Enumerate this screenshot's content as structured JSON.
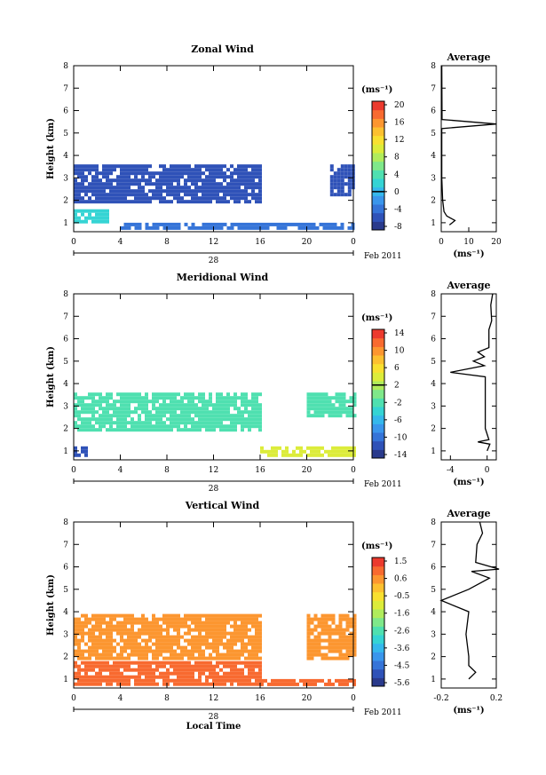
{
  "month_label": "Feb 2011",
  "day_label": "28",
  "xlabel_main": "Local Time",
  "ylabel_main": "Height (km)",
  "unit_label": "(ms⁻¹)",
  "avg_title": "Average",
  "x_ticks": [
    "0",
    "4",
    "8",
    "12",
    "16",
    "20",
    "0"
  ],
  "y_ticks": [
    "1",
    "2",
    "3",
    "4",
    "5",
    "6",
    "7",
    "8"
  ],
  "colors": {
    "scale": [
      "#2a3a8c",
      "#2f52b8",
      "#3574d8",
      "#3a96ec",
      "#35b8ec",
      "#35d4d4",
      "#4fe0b0",
      "#7fe88a",
      "#b0ec5c",
      "#dcec3a",
      "#f8e030",
      "#fcc030",
      "#fc9630",
      "#f86a30",
      "#ec3a2e"
    ]
  },
  "chart_data": [
    {
      "type": "heatmap",
      "title": "Zonal Wind",
      "ylabel": "Height (km)",
      "xlim": [
        0,
        24
      ],
      "ylim": [
        0.6,
        8
      ],
      "colorbar": {
        "labels": [
          "20",
          "16",
          "12",
          "8",
          "4",
          "0",
          "-4",
          "-8"
        ],
        "zero_label": "0"
      },
      "regions": [
        {
          "x": [
            0,
            16
          ],
          "y": [
            2.0,
            3.6
          ],
          "value": -6
        },
        {
          "x": [
            22,
            24
          ],
          "y": [
            2.3,
            3.6
          ],
          "value": -6
        },
        {
          "x": [
            0,
            3
          ],
          "y": [
            1.0,
            1.6
          ],
          "value": 2
        },
        {
          "x": [
            4,
            24
          ],
          "y": [
            0.7,
            1.0
          ],
          "value": -3
        }
      ],
      "average": {
        "xlim": [
          0,
          20
        ],
        "xticks": [
          "0",
          "10",
          "20"
        ],
        "profile": [
          [
            3,
            0.9
          ],
          [
            5,
            1.1
          ],
          [
            2,
            1.3
          ],
          [
            1,
            1.5
          ],
          [
            0.5,
            2
          ],
          [
            0.2,
            3
          ],
          [
            0.2,
            4
          ],
          [
            0.2,
            5
          ],
          [
            0.2,
            5.2
          ],
          [
            20,
            5.4
          ],
          [
            0.3,
            5.6
          ],
          [
            0.2,
            8
          ]
        ]
      }
    },
    {
      "type": "heatmap",
      "title": "Meridional Wind",
      "ylabel": "Height (km)",
      "xlim": [
        0,
        24
      ],
      "ylim": [
        0.6,
        8
      ],
      "colorbar": {
        "labels": [
          "14",
          "10",
          "6",
          "2",
          "-2",
          "-6",
          "-10",
          "-14"
        ],
        "zero_label": "2"
      },
      "regions": [
        {
          "x": [
            0,
            16
          ],
          "y": [
            2.0,
            3.6
          ],
          "value": -1
        },
        {
          "x": [
            20,
            24
          ],
          "y": [
            2.6,
            3.6
          ],
          "value": -1
        },
        {
          "x": [
            0,
            1
          ],
          "y": [
            0.8,
            1.2
          ],
          "value": -12
        },
        {
          "x": [
            16,
            24
          ],
          "y": [
            0.8,
            1.2
          ],
          "value": 4
        }
      ],
      "average": {
        "xlim": [
          -5,
          1
        ],
        "xticks": [
          "-4",
          "0"
        ],
        "profile": [
          [
            0,
            1
          ],
          [
            0.3,
            1.3
          ],
          [
            -1,
            1.4
          ],
          [
            0.2,
            1.5
          ],
          [
            -0.2,
            2
          ],
          [
            -0.2,
            3
          ],
          [
            -0.2,
            4
          ],
          [
            -0.2,
            4.3
          ],
          [
            -4,
            4.5
          ],
          [
            -0.3,
            4.8
          ],
          [
            -1.5,
            5
          ],
          [
            -0.3,
            5.2
          ],
          [
            -1,
            5.4
          ],
          [
            0.2,
            5.6
          ],
          [
            0.2,
            6.4
          ],
          [
            0.5,
            6.8
          ],
          [
            0.4,
            7.5
          ],
          [
            0.6,
            8
          ]
        ]
      }
    },
    {
      "type": "heatmap",
      "title": "Vertical Wind",
      "ylabel": "Height (km)",
      "xlabel": "Local Time",
      "xlim": [
        0,
        24
      ],
      "ylim": [
        0.6,
        8
      ],
      "colorbar": {
        "labels": [
          "1.5",
          "0.6",
          "-0.5",
          "-1.6",
          "-2.6",
          "-3.6",
          "-4.5",
          "-5.6"
        ],
        "zero_label": ""
      },
      "regions": [
        {
          "x": [
            0,
            16
          ],
          "y": [
            2.0,
            3.9
          ],
          "value": 0.2
        },
        {
          "x": [
            20,
            24
          ],
          "y": [
            2.0,
            3.9
          ],
          "value": 0.2
        },
        {
          "x": [
            0,
            16
          ],
          "y": [
            0.7,
            1.8
          ],
          "value": 0.8
        },
        {
          "x": [
            16,
            24
          ],
          "y": [
            0.7,
            1.0
          ],
          "value": 0.8
        }
      ],
      "average": {
        "xlim": [
          -0.2,
          0.2
        ],
        "xticks": [
          "-0.2",
          "0.2"
        ],
        "profile": [
          [
            0,
            1
          ],
          [
            0.05,
            1.3
          ],
          [
            0,
            1.6
          ],
          [
            0,
            2
          ],
          [
            -0.02,
            3
          ],
          [
            0,
            4
          ],
          [
            -0.2,
            4.5
          ],
          [
            0,
            5
          ],
          [
            0.15,
            5.5
          ],
          [
            0.02,
            5.8
          ],
          [
            0.22,
            5.9
          ],
          [
            0.05,
            6.2
          ],
          [
            0.06,
            7
          ],
          [
            0.1,
            7.5
          ],
          [
            0.08,
            8
          ]
        ]
      }
    }
  ]
}
